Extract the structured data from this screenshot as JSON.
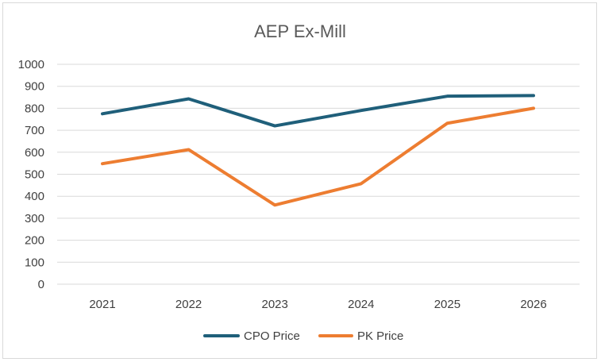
{
  "chart_data": {
    "type": "line",
    "title": "AEP Ex-Mill",
    "categories": [
      "2021",
      "2022",
      "2023",
      "2024",
      "2025",
      "2026"
    ],
    "series": [
      {
        "name": "CPO Price",
        "color": "#1f5f7a",
        "values": [
          775,
          843,
          720,
          790,
          855,
          858
        ]
      },
      {
        "name": "PK Price",
        "color": "#ed7d31",
        "values": [
          548,
          612,
          360,
          457,
          732,
          800
        ]
      }
    ],
    "ylim": [
      0,
      1000
    ],
    "yticks": [
      0,
      100,
      200,
      300,
      400,
      500,
      600,
      700,
      800,
      900,
      1000
    ],
    "grid": true,
    "legend_position": "bottom"
  }
}
